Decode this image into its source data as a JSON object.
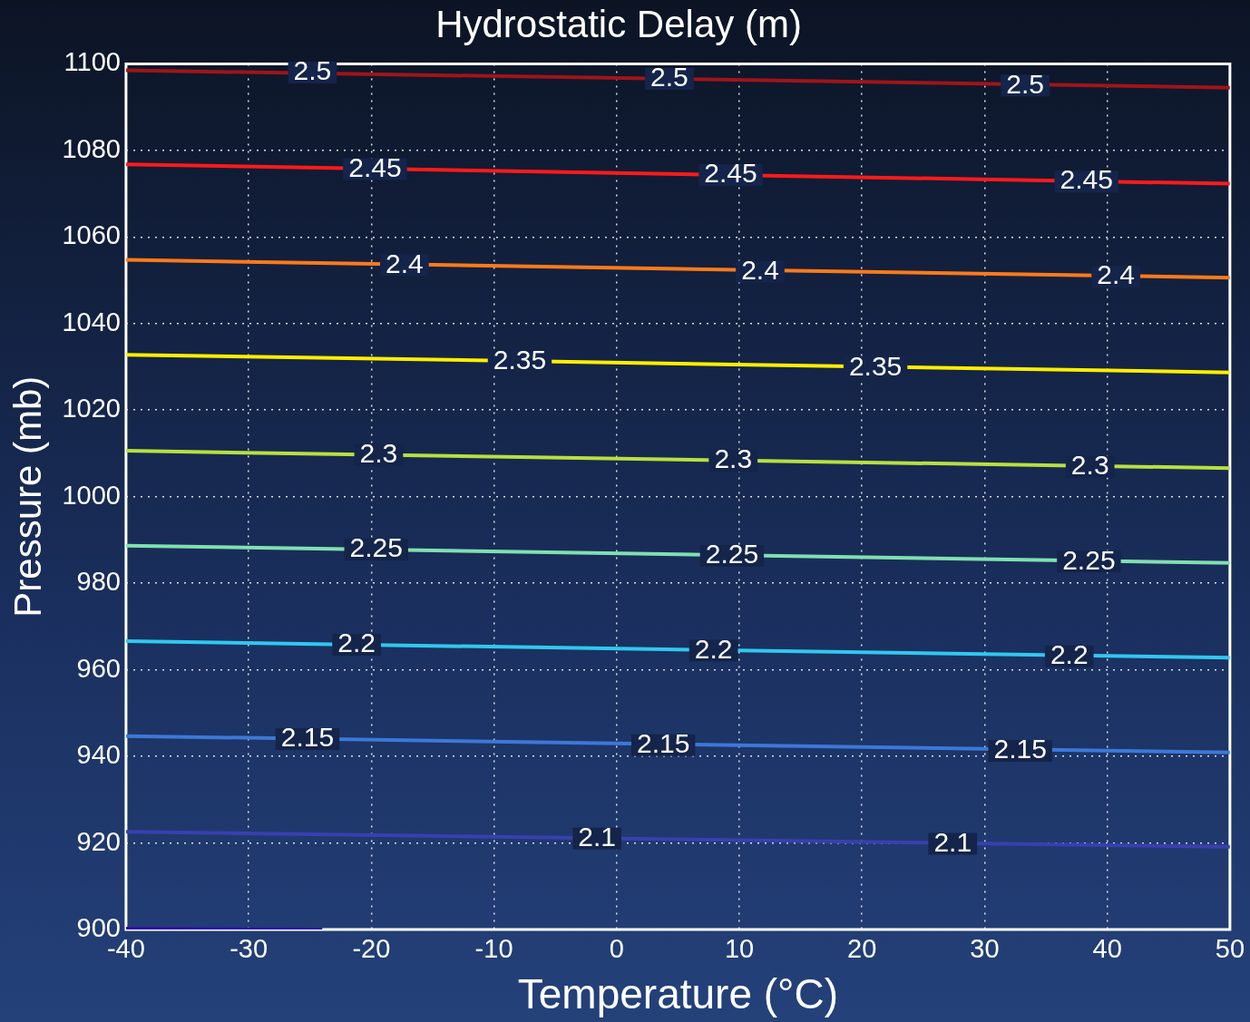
{
  "chart_data": {
    "type": "line",
    "title": "Hydrostatic Delay (m)",
    "xlabel": "Temperature (°C)",
    "ylabel": "Pressure (mb)",
    "xlim": [
      -40,
      50
    ],
    "xticks": [
      -40,
      -30,
      -20,
      -10,
      0,
      10,
      20,
      30,
      40,
      50
    ],
    "ylim": [
      900,
      1100
    ],
    "yticks": [
      900,
      920,
      940,
      960,
      980,
      1000,
      1020,
      1040,
      1060,
      1080,
      1100
    ],
    "grid": true,
    "legend": false,
    "marker": "none",
    "line_style": "solid",
    "series": [
      {
        "color": "#a01418",
        "x": [
          -40,
          50
        ],
        "values": [
          1098.5,
          1094.5
        ]
      },
      {
        "color": "#ff1a1a",
        "x": [
          -40,
          50
        ],
        "values": [
          1076.8,
          1072.3
        ]
      },
      {
        "color": "#ff7a1a",
        "x": [
          -40,
          50
        ],
        "values": [
          1054.7,
          1050.6
        ]
      },
      {
        "color": "#ffee00",
        "x": [
          -40,
          50
        ],
        "values": [
          1032.8,
          1028.7
        ]
      },
      {
        "color": "#b8e040",
        "x": [
          -40,
          50
        ],
        "values": [
          1010.6,
          1006.6
        ]
      },
      {
        "color": "#80e0b0",
        "x": [
          -40,
          50
        ],
        "values": [
          988.7,
          984.7
        ]
      },
      {
        "color": "#30c8f0",
        "x": [
          -40,
          50
        ],
        "values": [
          966.6,
          962.8
        ]
      },
      {
        "color": "#3c78d8",
        "x": [
          -40,
          50
        ],
        "values": [
          944.7,
          940.9
        ]
      },
      {
        "color": "#3840b0",
        "x": [
          -40,
          50
        ],
        "values": [
          922.6,
          919.1
        ]
      },
      {
        "color": "#3010a0",
        "x": [
          -40,
          -24
        ],
        "values": [
          900.2,
          900
        ]
      }
    ],
    "annotations": [
      {
        "text": "2.5",
        "x": -24.8,
        "y": 1098
      },
      {
        "text": "2.5",
        "x": 4.3,
        "y": 1096.5
      },
      {
        "text": "2.5",
        "x": 33.3,
        "y": 1095
      },
      {
        "text": "2.45",
        "x": -19.7,
        "y": 1075.7
      },
      {
        "text": "2.45",
        "x": 9.3,
        "y": 1074.3
      },
      {
        "text": "2.45",
        "x": 38.3,
        "y": 1072.8
      },
      {
        "text": "2.4",
        "x": -17.3,
        "y": 1053.5
      },
      {
        "text": "2.4",
        "x": 11.7,
        "y": 1052
      },
      {
        "text": "2.4",
        "x": 40.7,
        "y": 1050.8
      },
      {
        "text": "2.35",
        "x": -7.9,
        "y": 1031.2
      },
      {
        "text": "2.35",
        "x": 21.1,
        "y": 1029.8
      },
      {
        "text": "2.3",
        "x": -19.4,
        "y": 1009.7
      },
      {
        "text": "2.3",
        "x": 9.5,
        "y": 1008.3
      },
      {
        "text": "2.3",
        "x": 38.6,
        "y": 1006.9
      },
      {
        "text": "2.25",
        "x": -19.6,
        "y": 987.8
      },
      {
        "text": "2.25",
        "x": 9.4,
        "y": 986.3
      },
      {
        "text": "2.25",
        "x": 38.5,
        "y": 985
      },
      {
        "text": "2.2",
        "x": -21.2,
        "y": 965.8
      },
      {
        "text": "2.2",
        "x": 7.9,
        "y": 964.4
      },
      {
        "text": "2.2",
        "x": 36.9,
        "y": 963.1
      },
      {
        "text": "2.15",
        "x": -25.2,
        "y": 944
      },
      {
        "text": "2.15",
        "x": 3.8,
        "y": 942.6
      },
      {
        "text": "2.15",
        "x": 32.9,
        "y": 941.3
      },
      {
        "text": "2.1",
        "x": -1.6,
        "y": 921
      },
      {
        "text": "2.1",
        "x": 27.4,
        "y": 919.8
      }
    ]
  }
}
